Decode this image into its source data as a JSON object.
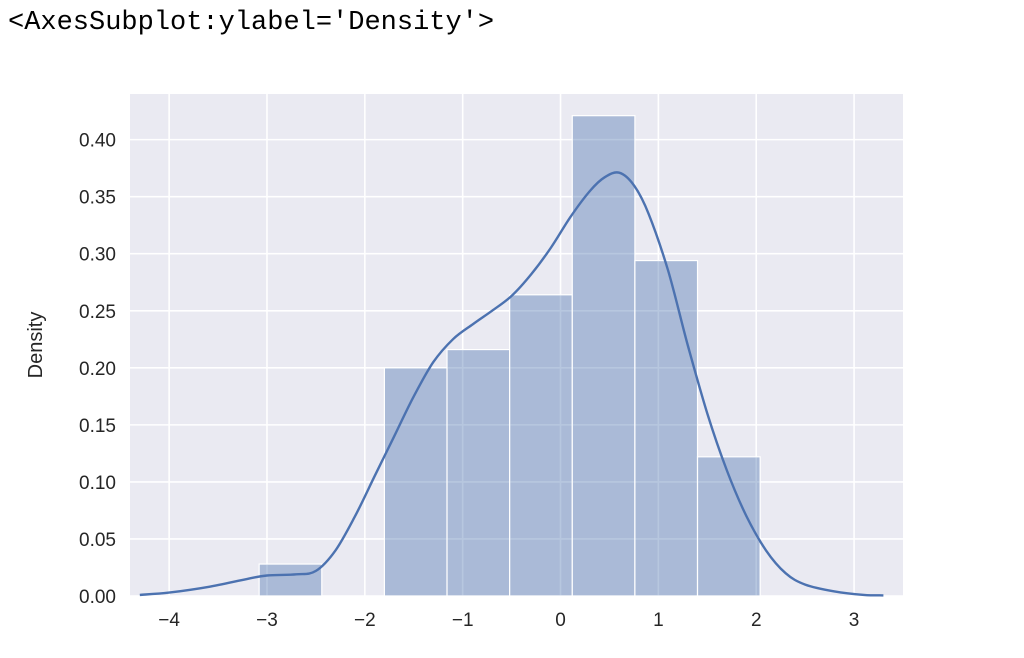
{
  "output_repr": "<AxesSubplot:ylabel='Density'>",
  "colors": {
    "background": "#eaeaf2",
    "grid": "#ffffff",
    "bar": "#4c72b0",
    "kde": "#4c72b0",
    "text": "#262626"
  },
  "chart_data": {
    "type": "bar",
    "subtype": "histogram-with-kde",
    "title": "",
    "xlabel": "",
    "ylabel": "Density",
    "xlim": [
      -4.4,
      3.5
    ],
    "ylim": [
      0,
      0.44
    ],
    "xticks": [
      -4,
      -3,
      -2,
      -1,
      0,
      1,
      2,
      3
    ],
    "xtick_labels": [
      "−4",
      "−3",
      "−2",
      "−1",
      "0",
      "1",
      "2",
      "3"
    ],
    "yticks": [
      0.0,
      0.05,
      0.1,
      0.15,
      0.2,
      0.25,
      0.3,
      0.35,
      0.4
    ],
    "ytick_labels": [
      "0.00",
      "0.05",
      "0.10",
      "0.15",
      "0.20",
      "0.25",
      "0.30",
      "0.35",
      "0.40"
    ],
    "grid": true,
    "bins": [
      {
        "x0": -3.08,
        "x1": -2.44,
        "density": 0.028
      },
      {
        "x0": -1.8,
        "x1": -1.16,
        "density": 0.2
      },
      {
        "x0": -1.16,
        "x1": -0.52,
        "density": 0.216
      },
      {
        "x0": -0.52,
        "x1": 0.12,
        "density": 0.264
      },
      {
        "x0": 0.12,
        "x1": 0.76,
        "density": 0.421
      },
      {
        "x0": 0.76,
        "x1": 1.4,
        "density": 0.294
      },
      {
        "x0": 1.4,
        "x1": 2.04,
        "density": 0.122
      }
    ],
    "kde": {
      "x": [
        -4.3,
        -4.0,
        -3.6,
        -3.2,
        -3.0,
        -2.7,
        -2.5,
        -2.3,
        -2.1,
        -1.9,
        -1.7,
        -1.5,
        -1.3,
        -1.1,
        -0.9,
        -0.7,
        -0.5,
        -0.3,
        -0.1,
        0.1,
        0.3,
        0.45,
        0.6,
        0.75,
        0.9,
        1.1,
        1.3,
        1.5,
        1.7,
        1.9,
        2.1,
        2.3,
        2.5,
        2.8,
        3.1,
        3.3
      ],
      "y": [
        0.001,
        0.003,
        0.008,
        0.015,
        0.018,
        0.019,
        0.022,
        0.04,
        0.07,
        0.105,
        0.14,
        0.175,
        0.205,
        0.225,
        0.238,
        0.25,
        0.263,
        0.282,
        0.305,
        0.332,
        0.355,
        0.367,
        0.371,
        0.36,
        0.335,
        0.285,
        0.22,
        0.16,
        0.11,
        0.07,
        0.04,
        0.02,
        0.01,
        0.004,
        0.001,
        0.0005
      ]
    }
  }
}
